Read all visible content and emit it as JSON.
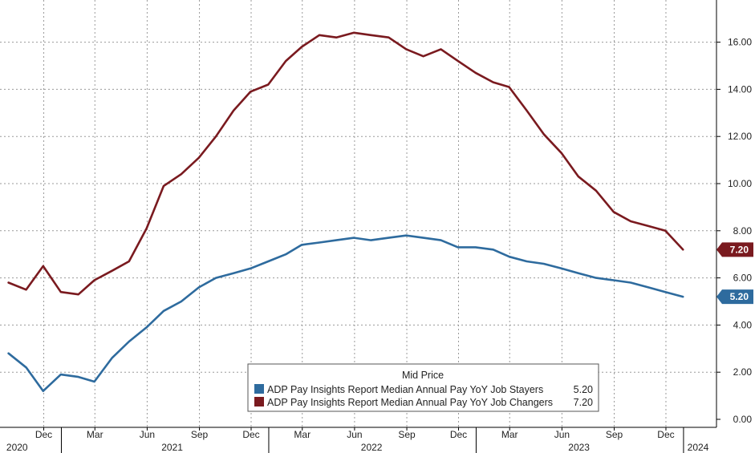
{
  "chart_data": {
    "type": "line",
    "legend": {
      "title": "Mid Price",
      "placement": "bottom-center"
    },
    "y_axis": {
      "side": "right",
      "ylim": [
        0,
        17.5
      ],
      "ticks": [
        "0.00",
        "2.00",
        "4.00",
        "6.00",
        "8.00",
        "10.00",
        "12.00",
        "14.00",
        "16.00"
      ],
      "grid": true
    },
    "x_axis": {
      "xlim": [
        "2020-09-15",
        "2024-02-28"
      ],
      "month_ticks": [
        {
          "label": "Dec",
          "date": "2020-12-01"
        },
        {
          "label": "Mar",
          "date": "2021-03-01"
        },
        {
          "label": "Jun",
          "date": "2021-06-01"
        },
        {
          "label": "Sep",
          "date": "2021-09-01"
        },
        {
          "label": "Dec",
          "date": "2021-12-01"
        },
        {
          "label": "Mar",
          "date": "2022-03-01"
        },
        {
          "label": "Jun",
          "date": "2022-06-01"
        },
        {
          "label": "Sep",
          "date": "2022-09-01"
        },
        {
          "label": "Dec",
          "date": "2022-12-01"
        },
        {
          "label": "Mar",
          "date": "2023-03-01"
        },
        {
          "label": "Jun",
          "date": "2023-06-01"
        },
        {
          "label": "Sep",
          "date": "2023-09-01"
        },
        {
          "label": "Dec",
          "date": "2023-12-01"
        }
      ],
      "year_labels": [
        {
          "label": "2020",
          "date": "2020-10-15"
        },
        {
          "label": "2021",
          "date": "2021-07-15"
        },
        {
          "label": "2022",
          "date": "2022-07-01"
        },
        {
          "label": "2023",
          "date": "2023-07-01"
        },
        {
          "label": "2024",
          "date": "2024-01-31"
        }
      ],
      "year_dividers": [
        "2021-01-01",
        "2022-01-01",
        "2023-01-01",
        "2024-01-01"
      ],
      "grid": true
    },
    "x": [
      "2020-09-30",
      "2020-10-31",
      "2020-11-30",
      "2020-12-31",
      "2021-01-31",
      "2021-02-28",
      "2021-03-31",
      "2021-04-30",
      "2021-05-31",
      "2021-06-30",
      "2021-07-31",
      "2021-08-31",
      "2021-09-30",
      "2021-10-31",
      "2021-11-30",
      "2021-12-31",
      "2022-01-31",
      "2022-02-28",
      "2022-03-31",
      "2022-04-30",
      "2022-05-31",
      "2022-06-30",
      "2022-07-31",
      "2022-08-31",
      "2022-09-30",
      "2022-10-31",
      "2022-11-30",
      "2022-12-31",
      "2023-01-31",
      "2023-02-28",
      "2023-03-31",
      "2023-04-30",
      "2023-05-31",
      "2023-06-30",
      "2023-07-31",
      "2023-08-31",
      "2023-09-30",
      "2023-10-31",
      "2023-11-30",
      "2023-12-31",
      "2024-01-31"
    ],
    "series": [
      {
        "name": "ADP Pay Insights Report Median Annual Pay YoY Job Stayers",
        "last_value": "5.20",
        "color": "#2e6b9e",
        "values": [
          2.8,
          2.2,
          1.2,
          1.9,
          1.8,
          1.6,
          2.6,
          3.3,
          3.9,
          4.6,
          5.0,
          5.6,
          6.0,
          6.2,
          6.4,
          6.7,
          7.0,
          7.4,
          7.5,
          7.6,
          7.7,
          7.6,
          7.7,
          7.8,
          7.7,
          7.6,
          7.3,
          7.3,
          7.2,
          6.9,
          6.7,
          6.6,
          6.4,
          6.2,
          6.0,
          5.9,
          5.8,
          5.6,
          5.4,
          5.2,
          null
        ]
      },
      {
        "name": "ADP Pay Insights Report Median Annual Pay YoY Job Changers",
        "last_value": "7.20",
        "color": "#7a1a1f",
        "values": [
          5.8,
          5.5,
          6.5,
          5.4,
          5.3,
          5.9,
          6.3,
          6.7,
          8.1,
          9.9,
          10.4,
          11.1,
          12.0,
          13.1,
          13.9,
          14.2,
          15.2,
          15.8,
          16.3,
          16.2,
          16.4,
          16.3,
          16.2,
          15.7,
          15.4,
          15.7,
          15.2,
          14.7,
          14.3,
          14.1,
          13.1,
          12.1,
          11.3,
          10.3,
          9.7,
          8.8,
          8.4,
          8.2,
          8.0,
          7.2,
          null
        ]
      }
    ]
  }
}
